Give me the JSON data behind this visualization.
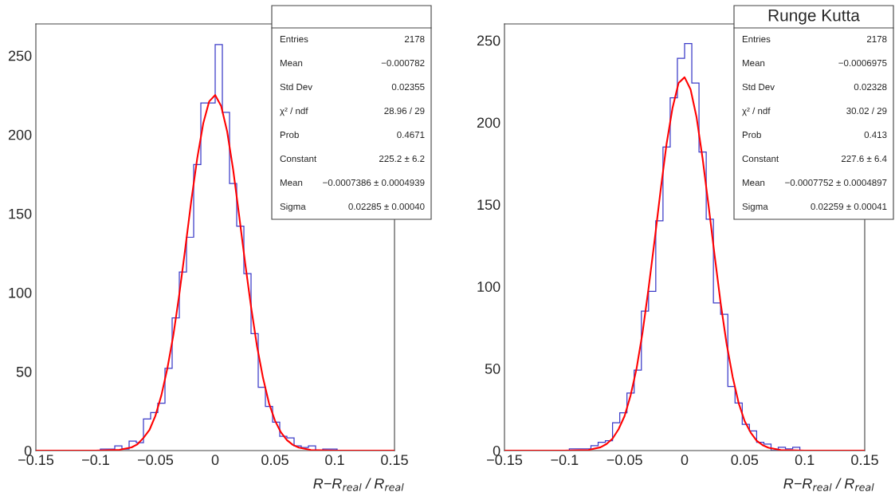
{
  "chart_data": [
    {
      "type": "histogram",
      "title": null,
      "bins": [
        -0.15,
        -0.144,
        -0.138,
        -0.132,
        -0.126,
        -0.12,
        -0.114,
        -0.108,
        -0.102,
        -0.096,
        -0.09,
        -0.084,
        -0.078,
        -0.072,
        -0.066,
        -0.06,
        -0.054,
        -0.048,
        -0.042,
        -0.036,
        -0.03,
        -0.024,
        -0.018,
        -0.012,
        -0.006,
        0,
        0.006,
        0.012,
        0.018,
        0.024,
        0.03,
        0.036,
        0.042,
        0.048,
        0.054,
        0.06,
        0.066,
        0.072,
        0.078,
        0.084,
        0.09,
        0.096,
        0.102,
        0.108,
        0.114,
        0.12,
        0.126,
        0.132,
        0.138,
        0.144,
        0.15
      ],
      "values": [
        0,
        0,
        0,
        0,
        0,
        0,
        0,
        0,
        0,
        1,
        1,
        3,
        1,
        6,
        5,
        20,
        24,
        30,
        52,
        84,
        113,
        135,
        181,
        220,
        220,
        257,
        214,
        169,
        142,
        112,
        74,
        40,
        28,
        18,
        9,
        8,
        3,
        2,
        3,
        0,
        1,
        1,
        0,
        0,
        0,
        0,
        0,
        0,
        0,
        0
      ],
      "color": "#3b3bc8",
      "series": [
        {
          "type": "line",
          "color": "#ff0000",
          "x": [
            -0.15,
            -0.1,
            -0.08,
            -0.07,
            -0.065,
            -0.06,
            -0.055,
            -0.05,
            -0.045,
            -0.04,
            -0.035,
            -0.03,
            -0.025,
            -0.02,
            -0.015,
            -0.01,
            -0.005,
            0,
            0.005,
            0.01,
            0.015,
            0.02,
            0.025,
            0.03,
            0.035,
            0.04,
            0.045,
            0.05,
            0.055,
            0.06,
            0.065,
            0.07,
            0.08,
            0.1,
            0.15
          ],
          "values": [
            0,
            0,
            0.5,
            2,
            4,
            8,
            13,
            22,
            35,
            52,
            73,
            99,
            128,
            158,
            185,
            207,
            221,
            225,
            218,
            202,
            178,
            149,
            119,
            91,
            66,
            46,
            30,
            19,
            11.5,
            6.6,
            3.6,
            1.9,
            0.4,
            0,
            0
          ]
        }
      ],
      "xlabel": "R−R$_{real}$ / R$_{real}$",
      "xlim": [
        -0.15,
        0.15
      ],
      "xticks": [
        {
          "value": -0.15,
          "label": "−0.15"
        },
        {
          "value": -0.1,
          "label": "−0.1"
        },
        {
          "value": -0.05,
          "label": "−0.05"
        },
        0,
        0.05,
        0.1,
        0.15
      ],
      "ylim": [
        0,
        270
      ],
      "yticks": [
        0,
        50,
        100,
        150,
        200,
        250
      ],
      "annotations": [
        "Entries",
        "2178",
        "Mean",
        "−0.000782",
        "Std Dev",
        "0.02355",
        "χ² / ndf",
        "28.96 / 29",
        "Prob",
        "0.4671",
        "Constant",
        "225.2 ± 6.2",
        "Mean",
        "−0.0007386 ± 0.0004939",
        "Sigma",
        "0.02285 ± 0.00040"
      ],
      "grid": false,
      "legend": false
    },
    {
      "type": "histogram",
      "title": "Runge Kutta",
      "bins": [
        -0.15,
        -0.144,
        -0.138,
        -0.132,
        -0.126,
        -0.12,
        -0.114,
        -0.108,
        -0.102,
        -0.096,
        -0.09,
        -0.084,
        -0.078,
        -0.072,
        -0.066,
        -0.06,
        -0.054,
        -0.048,
        -0.042,
        -0.036,
        -0.03,
        -0.024,
        -0.018,
        -0.012,
        -0.006,
        0,
        0.006,
        0.012,
        0.018,
        0.024,
        0.03,
        0.036,
        0.042,
        0.048,
        0.054,
        0.06,
        0.066,
        0.072,
        0.078,
        0.084,
        0.09,
        0.096,
        0.102,
        0.108,
        0.114,
        0.12,
        0.126,
        0.132,
        0.138,
        0.144,
        0.15
      ],
      "values": [
        0,
        0,
        0,
        0,
        0,
        0,
        0,
        0,
        0,
        1,
        1,
        1,
        3,
        5,
        6,
        17,
        23,
        35,
        49,
        85,
        97,
        140,
        185,
        215,
        239,
        248,
        224,
        182,
        141,
        90,
        83,
        39,
        29,
        16,
        12,
        5,
        4,
        0,
        2,
        1,
        2,
        0,
        0,
        0,
        0,
        0,
        0,
        0,
        0,
        0
      ],
      "color": "#3b3bc8",
      "series": [
        {
          "type": "line",
          "color": "#ff0000",
          "x": [
            -0.15,
            -0.1,
            -0.08,
            -0.07,
            -0.065,
            -0.06,
            -0.055,
            -0.05,
            -0.045,
            -0.04,
            -0.035,
            -0.03,
            -0.025,
            -0.02,
            -0.015,
            -0.01,
            -0.005,
            0,
            0.005,
            0.01,
            0.015,
            0.02,
            0.025,
            0.03,
            0.035,
            0.04,
            0.045,
            0.05,
            0.055,
            0.06,
            0.065,
            0.07,
            0.08,
            0.1,
            0.15
          ],
          "values": [
            0,
            0,
            0.4,
            2,
            4,
            7.3,
            13,
            21,
            33.5,
            50,
            72,
            99,
            128,
            158.5,
            187,
            209,
            224,
            227.5,
            220,
            203,
            178,
            149,
            119,
            90,
            65,
            45,
            29,
            18,
            11,
            6,
            3.3,
            1.7,
            0.4,
            0,
            0
          ]
        }
      ],
      "xlabel": "R−R$_{real}$ / R$_{real}$",
      "xlim": [
        -0.15,
        0.15
      ],
      "xticks": [
        {
          "value": -0.15,
          "label": "−0.15"
        },
        {
          "value": -0.1,
          "label": "−0.1"
        },
        {
          "value": -0.05,
          "label": "−0.05"
        },
        0,
        0.05,
        0.1,
        0.15
      ],
      "ylim": [
        0,
        260
      ],
      "yticks": [
        0,
        50,
        100,
        150,
        200,
        250
      ],
      "annotations": [
        "Entries",
        "2178",
        "Mean",
        "−0.0006975",
        "Std Dev",
        "0.02328",
        "χ² / ndf",
        "30.02 / 29",
        "Prob",
        "0.413",
        "Constant",
        "227.6 ± 6.4",
        "Mean",
        "−0.0007752 ± 0.0004897",
        "Sigma",
        "0.02259 ± 0.00041"
      ],
      "grid": false,
      "legend": false
    }
  ]
}
